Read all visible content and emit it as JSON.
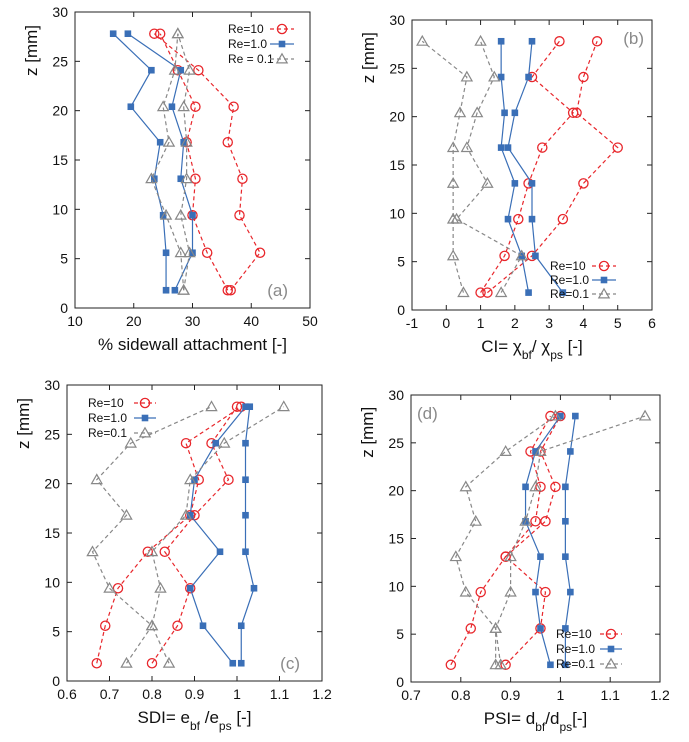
{
  "chart_data": [
    {
      "type": "line",
      "panel_label": "(a)",
      "xlabel": "% sidewall attachment [-]",
      "ylabel": "z [mm]",
      "xlim": [
        10,
        50
      ],
      "ylim": [
        0,
        30
      ],
      "xticks": [
        10,
        20,
        30,
        40,
        50
      ],
      "xtick_labels": [
        "10",
        "20",
        "30",
        "40",
        "50"
      ],
      "yticks": [
        0,
        5,
        10,
        15,
        20,
        25,
        30
      ],
      "ytick_labels": [
        "0",
        "5",
        "10",
        "15",
        "20",
        "25",
        "30"
      ],
      "legend_position": "top-right",
      "series": [
        {
          "name": "Re=10",
          "color": "#e8262b",
          "marker": "circle",
          "dash": "dashed",
          "side_a": [
            [
              36.0,
              1.8
            ],
            [
              32.5,
              5.6
            ],
            [
              30.0,
              9.4
            ],
            [
              30.5,
              13.1
            ],
            [
              29.0,
              16.8
            ],
            [
              30.5,
              20.4
            ],
            [
              27.5,
              24.1
            ],
            [
              24.5,
              27.8
            ]
          ],
          "side_b": [
            [
              36.5,
              1.8
            ],
            [
              41.5,
              5.6
            ],
            [
              38.0,
              9.4
            ],
            [
              38.5,
              13.1
            ],
            [
              36.0,
              16.8
            ],
            [
              37.0,
              20.4
            ],
            [
              31.0,
              24.1
            ],
            [
              23.5,
              27.8
            ]
          ]
        },
        {
          "name": "Re=1.0",
          "color": "#3a6fb7",
          "marker": "square",
          "dash": "solid",
          "side_a": [
            [
              25.5,
              1.8
            ],
            [
              25.5,
              5.6
            ],
            [
              25.0,
              9.4
            ],
            [
              23.5,
              13.1
            ],
            [
              24.5,
              16.8
            ],
            [
              19.5,
              20.4
            ],
            [
              23.0,
              24.1
            ],
            [
              16.5,
              27.8
            ]
          ],
          "side_b": [
            [
              27.0,
              1.8
            ],
            [
              30.0,
              5.6
            ],
            [
              30.0,
              9.4
            ],
            [
              28.0,
              13.1
            ],
            [
              28.5,
              16.8
            ],
            [
              26.5,
              20.4
            ],
            [
              28.0,
              24.1
            ],
            [
              19.0,
              27.8
            ]
          ]
        },
        {
          "name": "Re = 0.1",
          "color": "#888888",
          "marker": "triangle",
          "dash": "dashed",
          "side_a": [
            [
              28.5,
              1.8
            ],
            [
              28.0,
              5.6
            ],
            [
              25.5,
              9.4
            ],
            [
              23.0,
              13.1
            ],
            [
              26.0,
              16.8
            ],
            [
              25.0,
              20.4
            ],
            [
              27.0,
              24.1
            ],
            [
              27.5,
              27.8
            ]
          ],
          "side_b": [
            [
              28.5,
              1.8
            ],
            [
              29.5,
              5.6
            ],
            [
              28.0,
              9.4
            ],
            [
              29.0,
              13.1
            ],
            [
              29.0,
              16.8
            ],
            [
              28.5,
              20.4
            ],
            [
              29.5,
              24.1
            ],
            [
              27.5,
              27.8
            ]
          ]
        }
      ]
    },
    {
      "type": "line",
      "panel_label": "(b)",
      "xlabel_parts": [
        "CI= χ",
        "bf",
        "/ χ",
        "ps",
        " [-]"
      ],
      "ylabel": "z [mm]",
      "xlim": [
        -1,
        6
      ],
      "ylim": [
        0,
        30
      ],
      "xticks": [
        -1,
        0,
        1,
        2,
        3,
        4,
        5,
        6
      ],
      "xtick_labels": [
        "-1",
        "0",
        "1",
        "2",
        "3",
        "4",
        "5",
        "6"
      ],
      "yticks": [
        0,
        5,
        10,
        15,
        20,
        25,
        30
      ],
      "ytick_labels": [
        "0",
        "5",
        "10",
        "15",
        "20",
        "25",
        "30"
      ],
      "legend_position": "bottom-right",
      "series": [
        {
          "name": "Re=10",
          "color": "#e8262b",
          "marker": "circle",
          "dash": "dashed",
          "side_a": [
            [
              1.0,
              1.8
            ],
            [
              1.7,
              5.6
            ],
            [
              2.1,
              9.4
            ],
            [
              2.4,
              13.1
            ],
            [
              2.8,
              16.8
            ],
            [
              3.7,
              20.4
            ],
            [
              2.5,
              24.1
            ],
            [
              3.3,
              27.8
            ]
          ],
          "side_b": [
            [
              1.2,
              1.8
            ],
            [
              2.5,
              5.6
            ],
            [
              3.4,
              9.4
            ],
            [
              4.0,
              13.1
            ],
            [
              5.0,
              16.8
            ],
            [
              3.8,
              20.4
            ],
            [
              4.0,
              24.1
            ],
            [
              4.4,
              27.8
            ]
          ]
        },
        {
          "name": "Re=1.0",
          "color": "#3a6fb7",
          "marker": "square",
          "dash": "solid",
          "side_a": [
            [
              2.4,
              1.8
            ],
            [
              2.2,
              5.6
            ],
            [
              1.8,
              9.4
            ],
            [
              2.0,
              13.1
            ],
            [
              1.6,
              16.8
            ],
            [
              1.7,
              20.4
            ],
            [
              1.6,
              24.1
            ],
            [
              1.6,
              27.8
            ]
          ],
          "side_b": [
            [
              3.4,
              1.8
            ],
            [
              2.6,
              5.6
            ],
            [
              2.5,
              9.4
            ],
            [
              2.5,
              13.1
            ],
            [
              1.8,
              16.8
            ],
            [
              2.0,
              20.4
            ],
            [
              2.4,
              24.1
            ],
            [
              2.5,
              27.8
            ]
          ]
        },
        {
          "name": "Re=0.1",
          "color": "#888888",
          "marker": "triangle",
          "dash": "dashed",
          "side_a": [
            [
              0.5,
              1.8
            ],
            [
              0.2,
              5.6
            ],
            [
              0.2,
              9.4
            ],
            [
              0.2,
              13.1
            ],
            [
              0.2,
              16.8
            ],
            [
              0.4,
              20.4
            ],
            [
              0.6,
              24.1
            ],
            [
              -0.7,
              27.8
            ]
          ],
          "side_b": [
            [
              1.6,
              1.8
            ],
            [
              2.2,
              5.6
            ],
            [
              0.3,
              9.4
            ],
            [
              1.2,
              13.1
            ],
            [
              0.6,
              16.8
            ],
            [
              0.9,
              20.4
            ],
            [
              1.4,
              24.1
            ],
            [
              1.0,
              27.8
            ]
          ]
        }
      ]
    },
    {
      "type": "line",
      "panel_label": "(c)",
      "xlabel_parts": [
        "SDI= e",
        "bf",
        " /e",
        "ps",
        " [-]"
      ],
      "ylabel": "z [mm]",
      "xlim": [
        0.6,
        1.2
      ],
      "ylim": [
        0,
        30
      ],
      "xticks": [
        0.6,
        0.7,
        0.8,
        0.9,
        1.0,
        1.1,
        1.2
      ],
      "xtick_labels": [
        "0.6",
        "0.7",
        "0.8",
        "0.9",
        "1",
        "1.1",
        "1.2"
      ],
      "yticks": [
        0,
        5,
        10,
        15,
        20,
        25,
        30
      ],
      "ytick_labels": [
        "0",
        "5",
        "10",
        "15",
        "20",
        "25",
        "30"
      ],
      "legend_position": "top-left",
      "series": [
        {
          "name": "Re=10",
          "color": "#e8262b",
          "marker": "circle",
          "dash": "dashed",
          "side_a": [
            [
              0.67,
              1.8
            ],
            [
              0.69,
              5.6
            ],
            [
              0.72,
              9.4
            ],
            [
              0.79,
              13.1
            ],
            [
              0.89,
              16.8
            ],
            [
              0.91,
              20.4
            ],
            [
              0.88,
              24.1
            ],
            [
              1.01,
              27.8
            ]
          ],
          "side_b": [
            [
              0.8,
              1.8
            ],
            [
              0.86,
              5.6
            ],
            [
              0.89,
              9.4
            ],
            [
              0.83,
              13.1
            ],
            [
              0.9,
              16.8
            ],
            [
              0.98,
              20.4
            ],
            [
              0.94,
              24.1
            ],
            [
              1.0,
              27.8
            ]
          ]
        },
        {
          "name": "Re=1.0",
          "color": "#3a6fb7",
          "marker": "square",
          "dash": "solid",
          "side_a": [
            [
              0.99,
              1.8
            ],
            [
              0.92,
              5.6
            ],
            [
              0.89,
              9.4
            ],
            [
              0.96,
              13.1
            ],
            [
              0.89,
              16.8
            ],
            [
              0.9,
              20.4
            ],
            [
              0.95,
              24.1
            ],
            [
              1.02,
              27.8
            ]
          ],
          "side_b": [
            [
              1.01,
              1.8
            ],
            [
              1.01,
              5.6
            ],
            [
              1.04,
              9.4
            ],
            [
              1.02,
              13.1
            ],
            [
              1.02,
              16.8
            ],
            [
              1.02,
              20.4
            ],
            [
              1.02,
              24.1
            ],
            [
              1.03,
              27.8
            ]
          ]
        },
        {
          "name": "Re=0.1",
          "color": "#888888",
          "marker": "triangle",
          "dash": "dashed",
          "side_a": [
            [
              0.74,
              1.8
            ],
            [
              0.8,
              5.6
            ],
            [
              0.7,
              9.4
            ],
            [
              0.66,
              13.1
            ],
            [
              0.74,
              16.8
            ],
            [
              0.67,
              20.4
            ],
            [
              0.75,
              24.1
            ],
            [
              0.94,
              27.8
            ]
          ],
          "side_b": [
            [
              0.84,
              1.8
            ],
            [
              0.8,
              5.6
            ],
            [
              0.82,
              9.4
            ],
            [
              0.8,
              13.1
            ],
            [
              0.88,
              16.8
            ],
            [
              0.89,
              20.4
            ],
            [
              0.97,
              24.1
            ],
            [
              1.11,
              27.8
            ]
          ]
        }
      ]
    },
    {
      "type": "line",
      "panel_label": "(d)",
      "xlabel_parts": [
        "PSI= d",
        "bf",
        "/d",
        "ps",
        "[-]"
      ],
      "ylabel": "z [mm]",
      "xlim": [
        0.7,
        1.2
      ],
      "ylim": [
        0,
        30
      ],
      "xticks": [
        0.7,
        0.8,
        0.9,
        1.0,
        1.1,
        1.2
      ],
      "xtick_labels": [
        "0.7",
        "0.8",
        "0.9",
        "1",
        "1.1",
        "1.2"
      ],
      "yticks": [
        0,
        5,
        10,
        15,
        20,
        25,
        30
      ],
      "ytick_labels": [
        "0",
        "5",
        "10",
        "15",
        "20",
        "25",
        "30"
      ],
      "legend_position": "bottom-right",
      "series": [
        {
          "name": "Re=10",
          "color": "#e8262b",
          "marker": "circle",
          "dash": "dashed",
          "side_a": [
            [
              0.78,
              1.8
            ],
            [
              0.82,
              5.6
            ],
            [
              0.84,
              9.4
            ],
            [
              0.89,
              13.1
            ],
            [
              0.95,
              16.8
            ],
            [
              0.96,
              20.4
            ],
            [
              0.94,
              24.1
            ],
            [
              0.98,
              27.8
            ]
          ],
          "side_b": [
            [
              0.89,
              1.8
            ],
            [
              0.96,
              5.6
            ],
            [
              0.97,
              9.4
            ],
            [
              0.89,
              13.1
            ],
            [
              0.97,
              16.8
            ],
            [
              0.99,
              20.4
            ],
            [
              0.96,
              24.1
            ],
            [
              1.0,
              27.8
            ]
          ]
        },
        {
          "name": "Re=1.0",
          "color": "#3a6fb7",
          "marker": "square",
          "dash": "solid",
          "side_a": [
            [
              0.98,
              1.8
            ],
            [
              0.96,
              5.6
            ],
            [
              0.95,
              9.4
            ],
            [
              0.96,
              13.1
            ],
            [
              0.93,
              16.8
            ],
            [
              0.93,
              20.4
            ],
            [
              0.95,
              24.1
            ],
            [
              1.0,
              27.8
            ]
          ],
          "side_b": [
            [
              1.01,
              1.8
            ],
            [
              1.01,
              5.6
            ],
            [
              1.02,
              9.4
            ],
            [
              1.01,
              13.1
            ],
            [
              1.01,
              16.8
            ],
            [
              1.01,
              20.4
            ],
            [
              1.02,
              24.1
            ],
            [
              1.03,
              27.8
            ]
          ]
        },
        {
          "name": "Re=0.1",
          "color": "#888888",
          "marker": "triangle",
          "dash": "dashed",
          "side_a": [
            [
              0.87,
              1.8
            ],
            [
              0.87,
              5.6
            ],
            [
              0.81,
              9.4
            ],
            [
              0.79,
              13.1
            ],
            [
              0.83,
              16.8
            ],
            [
              0.81,
              20.4
            ],
            [
              0.89,
              24.1
            ],
            [
              0.99,
              27.8
            ]
          ],
          "side_b": [
            [
              0.88,
              1.8
            ],
            [
              0.87,
              5.6
            ],
            [
              0.9,
              9.4
            ],
            [
              0.9,
              13.1
            ],
            [
              0.93,
              16.8
            ],
            [
              0.95,
              20.4
            ],
            [
              0.96,
              24.1
            ],
            [
              1.17,
              27.8
            ]
          ]
        }
      ]
    }
  ]
}
